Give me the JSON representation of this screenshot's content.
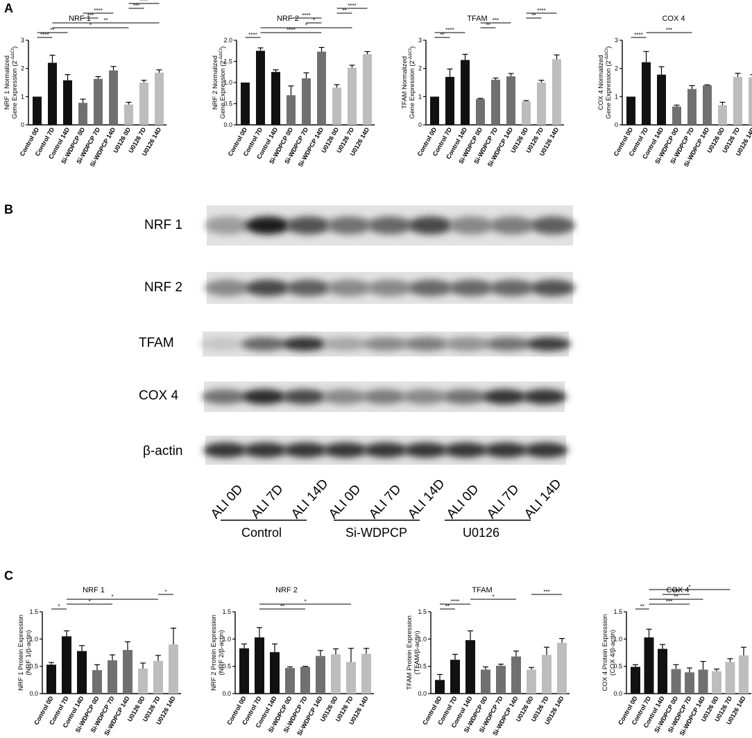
{
  "panels": {
    "a": "A",
    "b": "B",
    "c": "C"
  },
  "colors": {
    "black": "#111111",
    "dark_gray": "#707070",
    "light_gray": "#bdbdbd"
  },
  "bar_color_groups": [
    "black",
    "black",
    "black",
    "dark_gray",
    "dark_gray",
    "dark_gray",
    "light_gray",
    "light_gray",
    "light_gray"
  ],
  "categories": [
    "Control 0D",
    "Control 7D",
    "Control 14D",
    "Si-WDPCP 0D",
    "Si-WDPCP 7D",
    "Si-WDPCP 14D",
    "U0126 0D",
    "U0126 7D",
    "U0126 14D"
  ],
  "blot": {
    "proteins": [
      "NRF 1",
      "NRF 2",
      "TFAM",
      "COX 4",
      "β-actin"
    ],
    "lanes": [
      "ALI 0D",
      "ALI 7D",
      "ALI 14D",
      "ALI 0D",
      "ALI 7D",
      "ALI 14D",
      "ALI 0D",
      "ALI 7D",
      "ALI 14D"
    ],
    "groups": [
      "Control",
      "Si-WDPCP",
      "U0126"
    ],
    "band_intensity": [
      [
        0.35,
        0.95,
        0.7,
        0.55,
        0.6,
        0.75,
        0.45,
        0.5,
        0.65
      ],
      [
        0.45,
        0.75,
        0.65,
        0.45,
        0.45,
        0.6,
        0.6,
        0.6,
        0.7
      ],
      [
        0.15,
        0.6,
        0.85,
        0.3,
        0.45,
        0.5,
        0.4,
        0.55,
        0.8
      ],
      [
        0.55,
        0.9,
        0.75,
        0.45,
        0.5,
        0.45,
        0.55,
        0.85,
        0.85
      ],
      [
        0.85,
        0.85,
        0.85,
        0.85,
        0.85,
        0.85,
        0.85,
        0.85,
        0.85
      ]
    ]
  },
  "chart_data": [
    {
      "type": "bar",
      "panel": "A",
      "title": "NRF 1",
      "ylabel_lines": [
        "NRF 1 Normalized",
        "Gene Expression (2"
      ],
      "ylabel_sup": "-ΔΔCt",
      "ylim": [
        0,
        3
      ],
      "yticks": [
        0,
        1,
        2,
        3
      ],
      "values": [
        1.0,
        2.2,
        1.58,
        0.78,
        1.63,
        1.93,
        0.72,
        1.5,
        1.85
      ],
      "errors": [
        0,
        0.27,
        0.2,
        0.13,
        0.08,
        0.14,
        0.08,
        0.08,
        0.1
      ],
      "significance": [
        {
          "from": 0,
          "to": 1,
          "label": "****"
        },
        {
          "from": 0,
          "to": 2,
          "label": "**"
        },
        {
          "from": 1,
          "to": 6,
          "label": "*"
        },
        {
          "from": 1,
          "to": 8,
          "label": "**"
        },
        {
          "from": 3,
          "to": 4,
          "label": "***"
        },
        {
          "from": 3,
          "to": 5,
          "label": "****"
        },
        {
          "from": 6,
          "to": 7,
          "label": "***"
        },
        {
          "from": 6,
          "to": 8,
          "label": "****"
        }
      ]
    },
    {
      "type": "bar",
      "panel": "A",
      "title": "NRF 2",
      "ylabel_lines": [
        "NRF 2 Normalized",
        "Gene Expression (2"
      ],
      "ylabel_sup": "-ΔΔCt",
      "ylim": [
        0,
        2
      ],
      "yticks": [
        0,
        0.5,
        1.0,
        1.5,
        2.0
      ],
      "values": [
        1.0,
        1.75,
        1.25,
        0.7,
        1.1,
        1.73,
        0.88,
        1.35,
        1.67
      ],
      "errors": [
        0,
        0.07,
        0.05,
        0.22,
        0.13,
        0.1,
        0.07,
        0.06,
        0.06
      ],
      "significance": [
        {
          "from": 0,
          "to": 1,
          "label": "****"
        },
        {
          "from": 1,
          "to": 5,
          "label": "****"
        },
        {
          "from": 1,
          "to": 7,
          "label": "*"
        },
        {
          "from": 4,
          "to": 5,
          "label": "*"
        },
        {
          "from": 3,
          "to": 5,
          "label": "****"
        },
        {
          "from": 6,
          "to": 7,
          "label": "**"
        },
        {
          "from": 6,
          "to": 8,
          "label": "****"
        }
      ]
    },
    {
      "type": "bar",
      "panel": "A",
      "title": "TFAM",
      "ylabel_lines": [
        "TFAM Normalized",
        "Gene Expression (2"
      ],
      "ylabel_sup": "-ΔΔCt",
      "ylim": [
        0,
        3
      ],
      "yticks": [
        0,
        1,
        2,
        3
      ],
      "values": [
        1.0,
        1.7,
        2.3,
        0.92,
        1.6,
        1.72,
        0.83,
        1.5,
        2.33
      ],
      "errors": [
        0,
        0.28,
        0.2,
        0.02,
        0.06,
        0.1,
        0.03,
        0.08,
        0.15
      ],
      "significance": [
        {
          "from": 0,
          "to": 1,
          "label": "**"
        },
        {
          "from": 0,
          "to": 2,
          "label": "****"
        },
        {
          "from": 3,
          "to": 4,
          "label": "**"
        },
        {
          "from": 3,
          "to": 5,
          "label": "***"
        },
        {
          "from": 6,
          "to": 7,
          "label": "**"
        },
        {
          "from": 6,
          "to": 8,
          "label": "****"
        }
      ]
    },
    {
      "type": "bar",
      "panel": "A",
      "title": "COX 4",
      "ylabel_lines": [
        "COX 4 Normalized",
        "Gene Expression (2"
      ],
      "ylabel_sup": "-ΔΔCt",
      "ylim": [
        0,
        3
      ],
      "yticks": [
        0,
        1,
        2,
        3
      ],
      "values": [
        1.0,
        2.22,
        1.78,
        0.65,
        1.27,
        1.4,
        0.7,
        1.7,
        1.68
      ],
      "errors": [
        0,
        0.38,
        0.28,
        0.05,
        0.12,
        0.02,
        0.1,
        0.13,
        0.1
      ],
      "significance": [
        {
          "from": 0,
          "to": 1,
          "label": "****"
        },
        {
          "from": 1,
          "to": 4,
          "label": "***"
        }
      ]
    },
    {
      "type": "bar",
      "panel": "C",
      "title": "NRF 1",
      "ylabel_lines": [
        "NRF 1 Protein Expression",
        "(NRF 1/β-actin)"
      ],
      "ylabel_sup": "",
      "ylim": [
        0,
        1.5
      ],
      "yticks": [
        0.0,
        0.5,
        1.0,
        1.5
      ],
      "values": [
        0.53,
        1.05,
        0.78,
        0.43,
        0.61,
        0.8,
        0.46,
        0.6,
        0.9
      ],
      "errors": [
        0.04,
        0.1,
        0.1,
        0.1,
        0.1,
        0.15,
        0.1,
        0.1,
        0.3
      ],
      "significance": [
        {
          "from": 0,
          "to": 1,
          "label": "*"
        },
        {
          "from": 1,
          "to": 4,
          "label": "*"
        },
        {
          "from": 1,
          "to": 7,
          "label": "*"
        },
        {
          "from": 7,
          "to": 8,
          "label": "*"
        }
      ]
    },
    {
      "type": "bar",
      "panel": "C",
      "title": "NRF 2",
      "ylabel_lines": [
        "NRF 2 Protein Expression",
        "(NRF 2/β-actin)"
      ],
      "ylabel_sup": "",
      "ylim": [
        0,
        1.5
      ],
      "yticks": [
        0.0,
        0.5,
        1.0,
        1.5
      ],
      "values": [
        0.83,
        1.03,
        0.76,
        0.47,
        0.49,
        0.69,
        0.72,
        0.58,
        0.73
      ],
      "errors": [
        0.08,
        0.18,
        0.15,
        0.02,
        0.01,
        0.1,
        0.1,
        0.25,
        0.1
      ],
      "significance": [
        {
          "from": 1,
          "to": 4,
          "label": "**"
        },
        {
          "from": 1,
          "to": 7,
          "label": "*"
        }
      ]
    },
    {
      "type": "bar",
      "panel": "C",
      "title": "TFAM",
      "ylabel_lines": [
        "TFAM Protein Expression",
        "(TFAM/β-actin)"
      ],
      "ylabel_sup": "",
      "ylim": [
        0,
        1.5
      ],
      "yticks": [
        0.0,
        0.5,
        1.0,
        1.5
      ],
      "values": [
        0.25,
        0.62,
        0.98,
        0.44,
        0.51,
        0.68,
        0.44,
        0.71,
        0.93
      ],
      "errors": [
        0.1,
        0.1,
        0.17,
        0.05,
        0.03,
        0.1,
        0.04,
        0.14,
        0.08
      ],
      "significance": [
        {
          "from": 0,
          "to": 1,
          "label": "**"
        },
        {
          "from": 0,
          "to": 2,
          "label": "****"
        },
        {
          "from": 2,
          "to": 5,
          "label": "*"
        },
        {
          "from": 6,
          "to": 8,
          "label": "***"
        }
      ]
    },
    {
      "type": "bar",
      "panel": "C",
      "title": "COX 4",
      "ylabel_lines": [
        "COX 4 Protein Expression",
        "(COX 4/β-actin)"
      ],
      "ylabel_sup": "",
      "ylim": [
        0,
        1.5
      ],
      "yticks": [
        0.0,
        0.5,
        1.0,
        1.5
      ],
      "values": [
        0.49,
        1.03,
        0.82,
        0.45,
        0.39,
        0.44,
        0.41,
        0.58,
        0.7
      ],
      "errors": [
        0.04,
        0.15,
        0.08,
        0.08,
        0.08,
        0.15,
        0.04,
        0.06,
        0.15
      ],
      "significance": [
        {
          "from": 0,
          "to": 1,
          "label": "**"
        },
        {
          "from": 1,
          "to": 4,
          "label": "***"
        },
        {
          "from": 1,
          "to": 5,
          "label": "**"
        },
        {
          "from": 2,
          "to": 4,
          "label": "***"
        },
        {
          "from": 1,
          "to": 7,
          "label": "*"
        }
      ]
    }
  ]
}
